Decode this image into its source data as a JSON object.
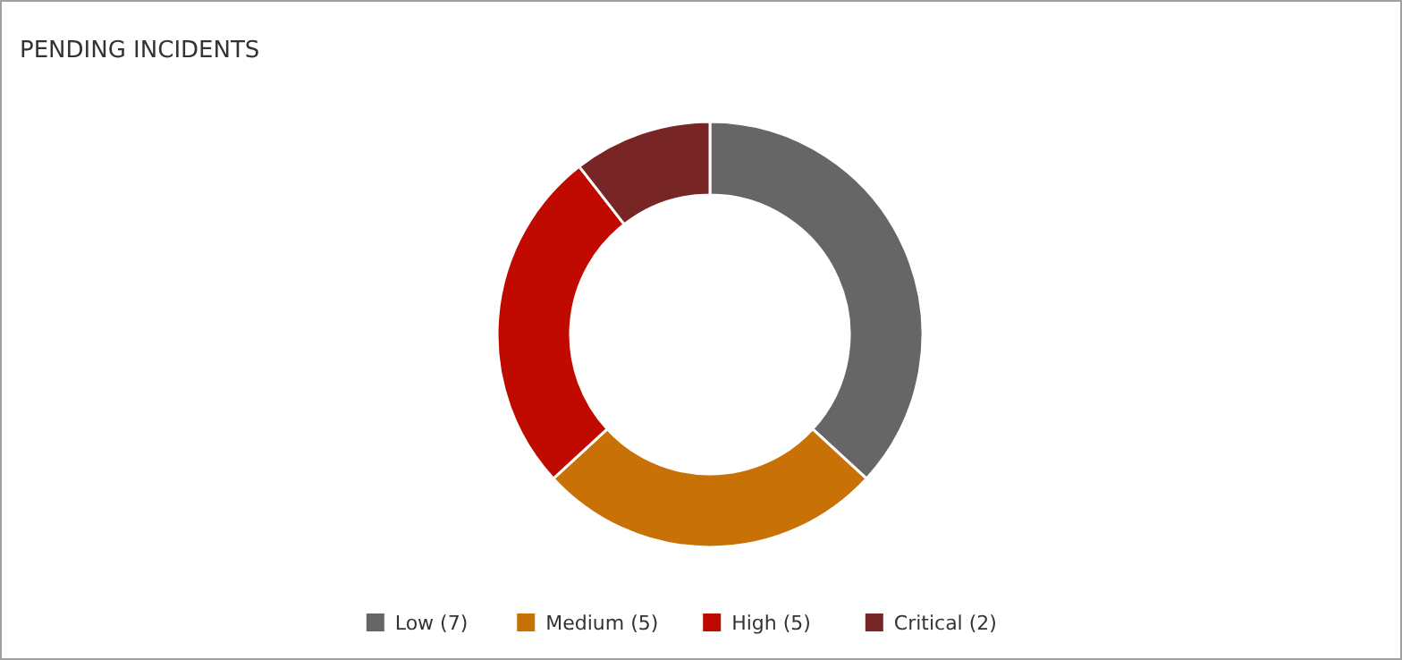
{
  "chart_data": {
    "type": "donut",
    "title": "PENDING INCIDENTS",
    "categories": [
      "Low (7)",
      "Medium (5)",
      "High (5)",
      "Critical (2)"
    ],
    "values": [
      7,
      5,
      5,
      2
    ],
    "colors": [
      "#666666",
      "#c87107",
      "#c00a00",
      "#772525"
    ],
    "legend": "bottom"
  }
}
